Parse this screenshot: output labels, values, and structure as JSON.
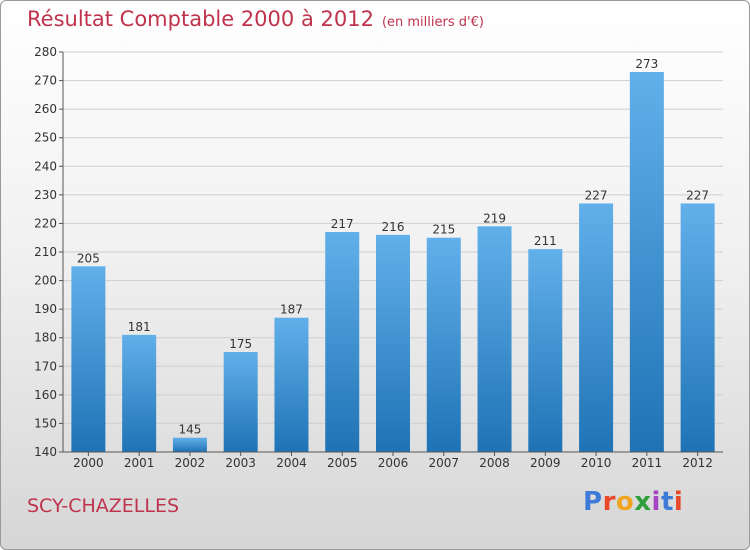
{
  "header": {
    "title": "Résultat Comptable 2000 à 2012",
    "subtitle": "(en milliers d'€)"
  },
  "footer": {
    "city": "SCY-CHAZELLES",
    "logo_text": "Proxiti",
    "logo_colors": [
      "#3d7bd6",
      "#e8472a",
      "#f0a51e",
      "#2f9e3c",
      "#a545c2",
      "#3d7bd6",
      "#e8472a"
    ]
  },
  "colors": {
    "bar_top": "#62b0ea",
    "bar_bottom": "#1f73b5",
    "axis": "#555555",
    "grid": "#cfcfcf",
    "text": "#333333"
  },
  "chart_data": {
    "type": "bar",
    "categories": [
      "2000",
      "2001",
      "2002",
      "2003",
      "2004",
      "2005",
      "2006",
      "2007",
      "2008",
      "2009",
      "2010",
      "2011",
      "2012"
    ],
    "values": [
      205,
      181,
      145,
      175,
      187,
      217,
      216,
      215,
      219,
      211,
      227,
      273,
      227
    ],
    "title": "Résultat Comptable 2000 à 2012",
    "subtitle": "(en milliers d'€)",
    "ylim": [
      140,
      280
    ],
    "yticks": [
      140,
      150,
      160,
      170,
      180,
      190,
      200,
      210,
      220,
      230,
      240,
      250,
      260,
      270,
      280
    ],
    "grid": true,
    "data_labels": true
  }
}
